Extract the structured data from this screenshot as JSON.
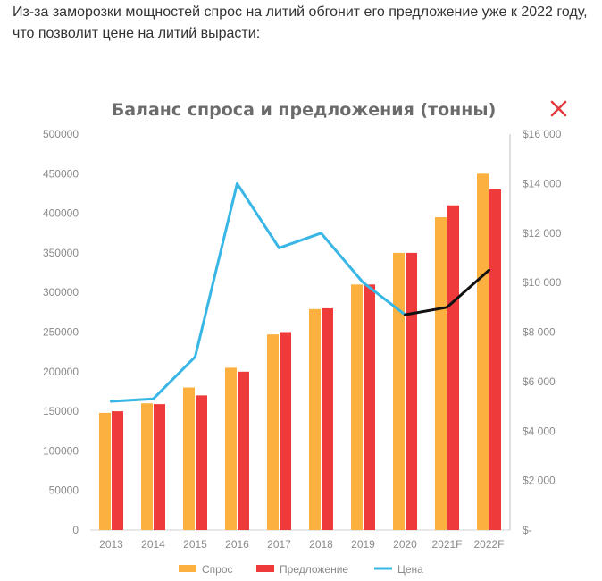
{
  "article": {
    "intro_text": "Из-за заморозки мощностей спрос на литий обгонит его предложение уже к 2022 году, что позволит цене на литий вырасти:"
  },
  "colors": {
    "demand": "#fbb040",
    "supply": "#ee3a3a",
    "price": "#38b6e6",
    "forecast": "#111111",
    "close": "#e0393e"
  },
  "icons": {
    "close": "close-icon"
  },
  "chart_data": {
    "type": "bar",
    "title": "Баланс спроса и предложения (тонны)",
    "categories": [
      "2013",
      "2014",
      "2015",
      "2016",
      "2017",
      "2018",
      "2019",
      "2020",
      "2021F",
      "2022F"
    ],
    "series": [
      {
        "name": "Спрос",
        "type": "bar",
        "axis": "left",
        "values": [
          148000,
          160000,
          180000,
          205000,
          247000,
          279000,
          310000,
          350000,
          395000,
          450000
        ]
      },
      {
        "name": "Предложение",
        "type": "bar",
        "axis": "left",
        "values": [
          150000,
          159000,
          170000,
          200000,
          250000,
          280000,
          310000,
          350000,
          410000,
          430000
        ]
      },
      {
        "name": "Цена",
        "type": "line",
        "axis": "right",
        "values": [
          5200,
          5300,
          7000,
          14000,
          11400,
          12000,
          10000,
          8700,
          null,
          null
        ]
      },
      {
        "type": "line",
        "axis": "right",
        "values": [
          null,
          null,
          null,
          null,
          null,
          null,
          null,
          8700,
          9000,
          10500
        ]
      }
    ],
    "y_left": {
      "min": 0,
      "max": 500000,
      "ticks": [
        "0",
        "50000",
        "100000",
        "150000",
        "200000",
        "250000",
        "300000",
        "350000",
        "400000",
        "450000",
        "500000"
      ]
    },
    "y_right": {
      "min": 0,
      "max": 16000,
      "ticks": [
        "$-",
        "$2 000",
        "$4 000",
        "$6 000",
        "$8 000",
        "$10 000",
        "$12 000",
        "$14 000",
        "$16 000"
      ]
    },
    "legend": {
      "placement": "bottom",
      "items": [
        "Спрос",
        "Предложение",
        "Цена"
      ]
    },
    "grid": false
  }
}
